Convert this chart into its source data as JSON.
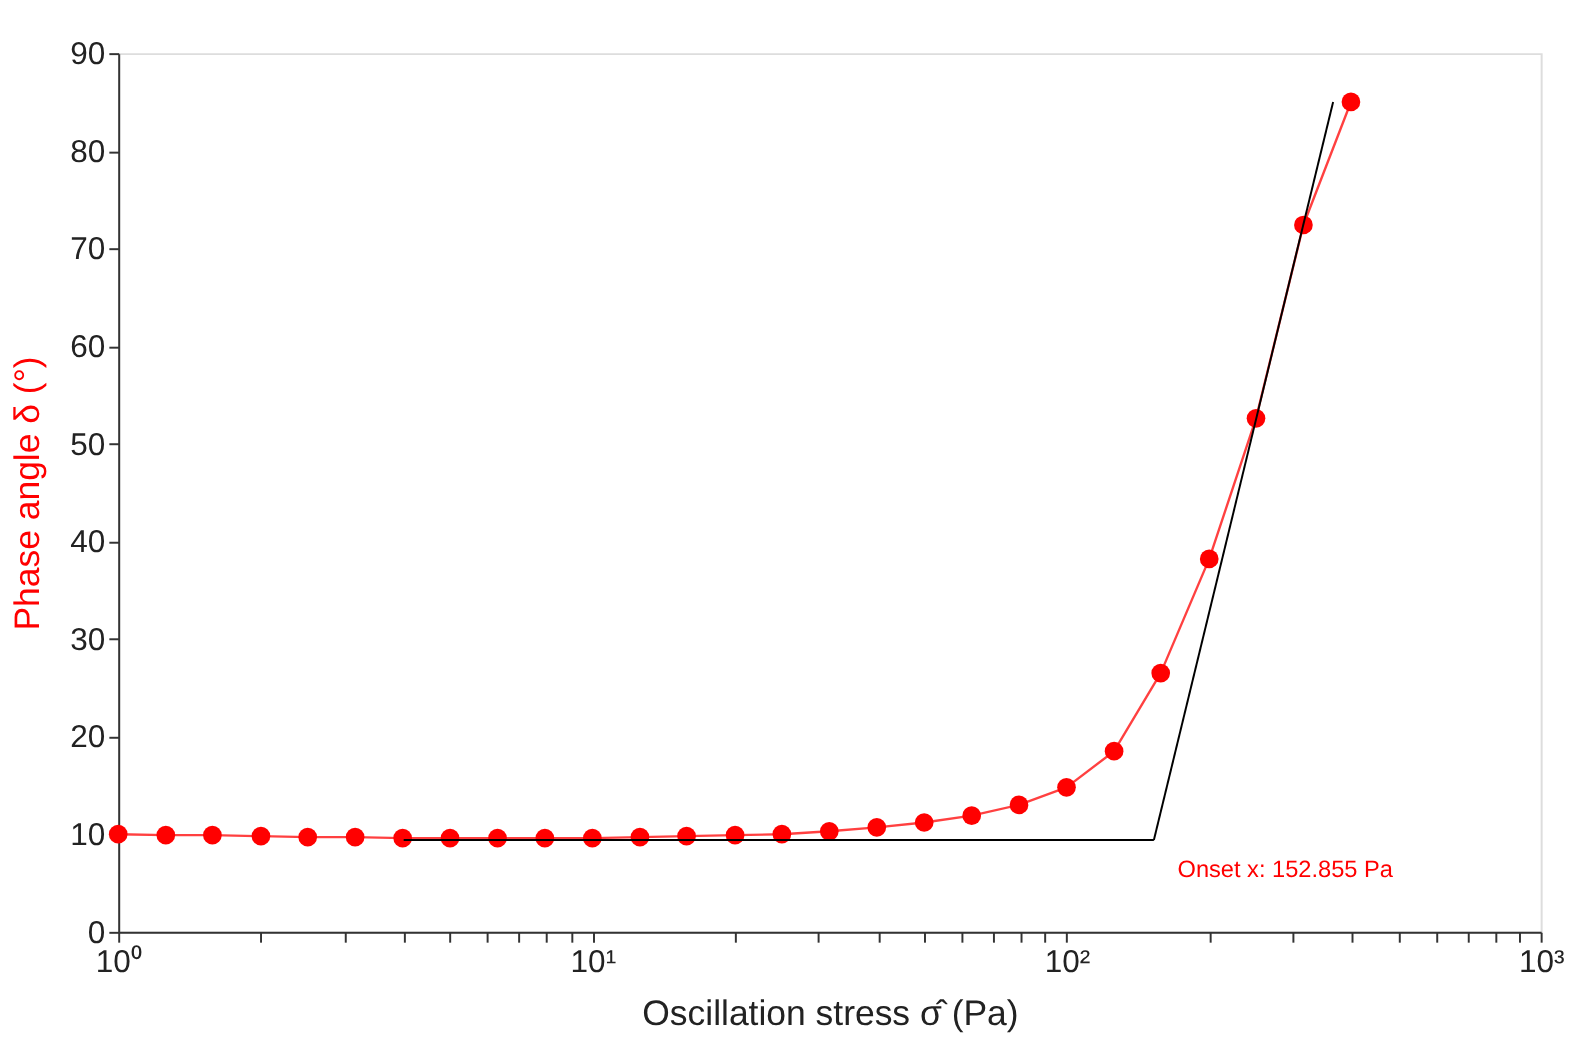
{
  "chart_data": {
    "type": "line",
    "xlabel": "Oscillation stress σ̂  (Pa)",
    "ylabel": "Phase angle  δ  (°)",
    "log": "x",
    "grid": false,
    "xlim": [
      1,
      1000
    ],
    "ylim": [
      0,
      90
    ],
    "xticks": [
      {
        "value": 1,
        "label": "10⁰"
      },
      {
        "value": 2,
        "label": null
      },
      {
        "value": 3,
        "label": null
      },
      {
        "value": 4,
        "label": null
      },
      {
        "value": 5,
        "label": null
      },
      {
        "value": 6,
        "label": null
      },
      {
        "value": 7,
        "label": null
      },
      {
        "value": 8,
        "label": null
      },
      {
        "value": 9,
        "label": null
      },
      {
        "value": 10,
        "label": "10¹"
      },
      {
        "value": 20,
        "label": null
      },
      {
        "value": 30,
        "label": null
      },
      {
        "value": 40,
        "label": null
      },
      {
        "value": 50,
        "label": null
      },
      {
        "value": 60,
        "label": null
      },
      {
        "value": 70,
        "label": null
      },
      {
        "value": 80,
        "label": null
      },
      {
        "value": 90,
        "label": null
      },
      {
        "value": 100,
        "label": "10²"
      },
      {
        "value": 200,
        "label": null
      },
      {
        "value": 300,
        "label": null
      },
      {
        "value": 400,
        "label": null
      },
      {
        "value": 500,
        "label": null
      },
      {
        "value": 600,
        "label": null
      },
      {
        "value": 700,
        "label": null
      },
      {
        "value": 800,
        "label": null
      },
      {
        "value": 900,
        "label": null
      },
      {
        "value": 1000,
        "label": "10³"
      }
    ],
    "yticks": [
      0,
      10,
      20,
      30,
      40,
      50,
      60,
      70,
      80,
      90
    ],
    "x": [
      1,
      1.26,
      1.58,
      2,
      2.51,
      3.16,
      3.98,
      5.01,
      6.31,
      7.94,
      10,
      12.6,
      15.8,
      20,
      25.1,
      31.6,
      39.8,
      50.1,
      63.1,
      79.4,
      100,
      126,
      158,
      200,
      251,
      316,
      398
    ],
    "series": [
      {
        "marker": "circle",
        "color": "#ff0000",
        "values": [
          10.0,
          9.9,
          9.9,
          9.8,
          9.7,
          9.7,
          9.6,
          9.6,
          9.6,
          9.6,
          9.6,
          9.7,
          9.8,
          9.9,
          10.0,
          10.3,
          10.7,
          11.2,
          11.9,
          13.0,
          14.8,
          18.5,
          26.5,
          38.2,
          52.6,
          72.4,
          85.0
        ]
      },
      {
        "type": "line",
        "marker": "none",
        "color": "#000000",
        "x": [
          4,
          152.855
        ],
        "values": [
          9.4,
          9.4
        ]
      },
      {
        "type": "line",
        "marker": "none",
        "color": "#000000",
        "x": [
          152.855,
          365
        ],
        "values": [
          9.4,
          85
        ]
      }
    ],
    "annotations": [
      {
        "text": "Onset x: 152.855 Pa",
        "x": 152.855,
        "y": 9.4
      }
    ]
  }
}
